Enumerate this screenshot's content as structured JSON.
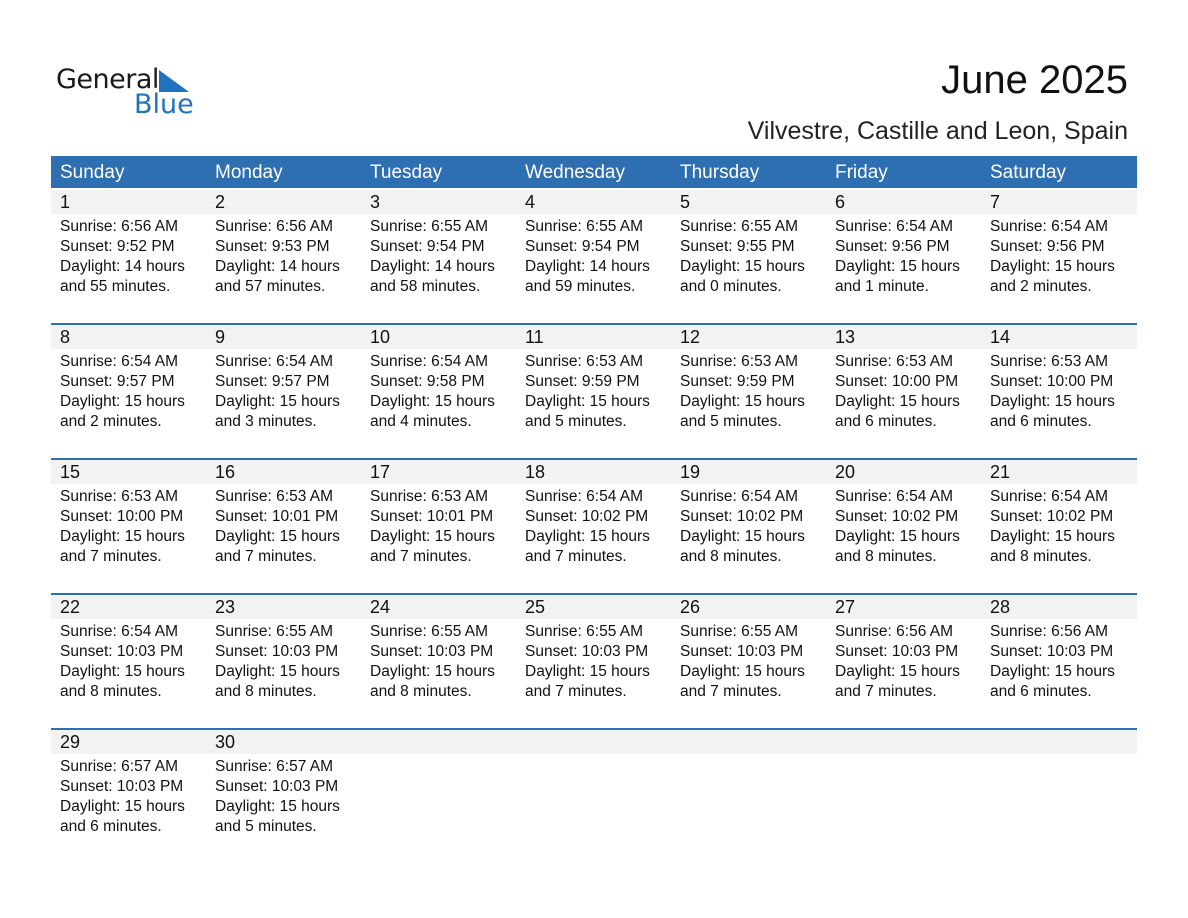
{
  "logo": {
    "line1": "General",
    "line2": "Blue"
  },
  "title": "June 2025",
  "location": "Vilvestre, Castille and Leon, Spain",
  "weekdays": [
    "Sunday",
    "Monday",
    "Tuesday",
    "Wednesday",
    "Thursday",
    "Friday",
    "Saturday"
  ],
  "accent": "#2e6fb2",
  "weeks": [
    [
      {
        "d": "1",
        "sr": "Sunrise: 6:56 AM",
        "ss": "Sunset: 9:52 PM",
        "dl": "Daylight: 14 hours",
        "dm": "and 55 minutes."
      },
      {
        "d": "2",
        "sr": "Sunrise: 6:56 AM",
        "ss": "Sunset: 9:53 PM",
        "dl": "Daylight: 14 hours",
        "dm": "and 57 minutes."
      },
      {
        "d": "3",
        "sr": "Sunrise: 6:55 AM",
        "ss": "Sunset: 9:54 PM",
        "dl": "Daylight: 14 hours",
        "dm": "and 58 minutes."
      },
      {
        "d": "4",
        "sr": "Sunrise: 6:55 AM",
        "ss": "Sunset: 9:54 PM",
        "dl": "Daylight: 14 hours",
        "dm": "and 59 minutes."
      },
      {
        "d": "5",
        "sr": "Sunrise: 6:55 AM",
        "ss": "Sunset: 9:55 PM",
        "dl": "Daylight: 15 hours",
        "dm": "and 0 minutes."
      },
      {
        "d": "6",
        "sr": "Sunrise: 6:54 AM",
        "ss": "Sunset: 9:56 PM",
        "dl": "Daylight: 15 hours",
        "dm": "and 1 minute."
      },
      {
        "d": "7",
        "sr": "Sunrise: 6:54 AM",
        "ss": "Sunset: 9:56 PM",
        "dl": "Daylight: 15 hours",
        "dm": "and 2 minutes."
      }
    ],
    [
      {
        "d": "8",
        "sr": "Sunrise: 6:54 AM",
        "ss": "Sunset: 9:57 PM",
        "dl": "Daylight: 15 hours",
        "dm": "and 2 minutes."
      },
      {
        "d": "9",
        "sr": "Sunrise: 6:54 AM",
        "ss": "Sunset: 9:57 PM",
        "dl": "Daylight: 15 hours",
        "dm": "and 3 minutes."
      },
      {
        "d": "10",
        "sr": "Sunrise: 6:54 AM",
        "ss": "Sunset: 9:58 PM",
        "dl": "Daylight: 15 hours",
        "dm": "and 4 minutes."
      },
      {
        "d": "11",
        "sr": "Sunrise: 6:53 AM",
        "ss": "Sunset: 9:59 PM",
        "dl": "Daylight: 15 hours",
        "dm": "and 5 minutes."
      },
      {
        "d": "12",
        "sr": "Sunrise: 6:53 AM",
        "ss": "Sunset: 9:59 PM",
        "dl": "Daylight: 15 hours",
        "dm": "and 5 minutes."
      },
      {
        "d": "13",
        "sr": "Sunrise: 6:53 AM",
        "ss": "Sunset: 10:00 PM",
        "dl": "Daylight: 15 hours",
        "dm": "and 6 minutes."
      },
      {
        "d": "14",
        "sr": "Sunrise: 6:53 AM",
        "ss": "Sunset: 10:00 PM",
        "dl": "Daylight: 15 hours",
        "dm": "and 6 minutes."
      }
    ],
    [
      {
        "d": "15",
        "sr": "Sunrise: 6:53 AM",
        "ss": "Sunset: 10:00 PM",
        "dl": "Daylight: 15 hours",
        "dm": "and 7 minutes."
      },
      {
        "d": "16",
        "sr": "Sunrise: 6:53 AM",
        "ss": "Sunset: 10:01 PM",
        "dl": "Daylight: 15 hours",
        "dm": "and 7 minutes."
      },
      {
        "d": "17",
        "sr": "Sunrise: 6:53 AM",
        "ss": "Sunset: 10:01 PM",
        "dl": "Daylight: 15 hours",
        "dm": "and 7 minutes."
      },
      {
        "d": "18",
        "sr": "Sunrise: 6:54 AM",
        "ss": "Sunset: 10:02 PM",
        "dl": "Daylight: 15 hours",
        "dm": "and 7 minutes."
      },
      {
        "d": "19",
        "sr": "Sunrise: 6:54 AM",
        "ss": "Sunset: 10:02 PM",
        "dl": "Daylight: 15 hours",
        "dm": "and 8 minutes."
      },
      {
        "d": "20",
        "sr": "Sunrise: 6:54 AM",
        "ss": "Sunset: 10:02 PM",
        "dl": "Daylight: 15 hours",
        "dm": "and 8 minutes."
      },
      {
        "d": "21",
        "sr": "Sunrise: 6:54 AM",
        "ss": "Sunset: 10:02 PM",
        "dl": "Daylight: 15 hours",
        "dm": "and 8 minutes."
      }
    ],
    [
      {
        "d": "22",
        "sr": "Sunrise: 6:54 AM",
        "ss": "Sunset: 10:03 PM",
        "dl": "Daylight: 15 hours",
        "dm": "and 8 minutes."
      },
      {
        "d": "23",
        "sr": "Sunrise: 6:55 AM",
        "ss": "Sunset: 10:03 PM",
        "dl": "Daylight: 15 hours",
        "dm": "and 8 minutes."
      },
      {
        "d": "24",
        "sr": "Sunrise: 6:55 AM",
        "ss": "Sunset: 10:03 PM",
        "dl": "Daylight: 15 hours",
        "dm": "and 8 minutes."
      },
      {
        "d": "25",
        "sr": "Sunrise: 6:55 AM",
        "ss": "Sunset: 10:03 PM",
        "dl": "Daylight: 15 hours",
        "dm": "and 7 minutes."
      },
      {
        "d": "26",
        "sr": "Sunrise: 6:55 AM",
        "ss": "Sunset: 10:03 PM",
        "dl": "Daylight: 15 hours",
        "dm": "and 7 minutes."
      },
      {
        "d": "27",
        "sr": "Sunrise: 6:56 AM",
        "ss": "Sunset: 10:03 PM",
        "dl": "Daylight: 15 hours",
        "dm": "and 7 minutes."
      },
      {
        "d": "28",
        "sr": "Sunrise: 6:56 AM",
        "ss": "Sunset: 10:03 PM",
        "dl": "Daylight: 15 hours",
        "dm": "and 6 minutes."
      }
    ],
    [
      {
        "d": "29",
        "sr": "Sunrise: 6:57 AM",
        "ss": "Sunset: 10:03 PM",
        "dl": "Daylight: 15 hours",
        "dm": "and 6 minutes."
      },
      {
        "d": "30",
        "sr": "Sunrise: 6:57 AM",
        "ss": "Sunset: 10:03 PM",
        "dl": "Daylight: 15 hours",
        "dm": "and 5 minutes."
      }
    ]
  ]
}
